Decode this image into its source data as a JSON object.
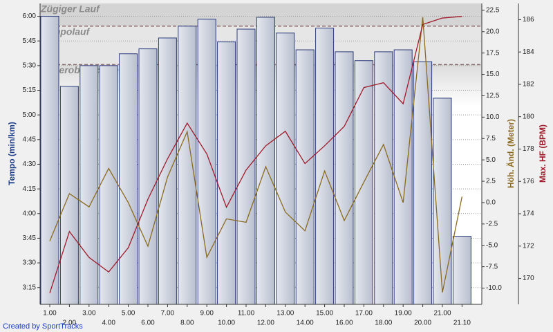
{
  "chart_data": {
    "type": "bar",
    "credit": "Created by SportTracks",
    "categories": [
      "1.00",
      "2.00",
      "3.00",
      "4.00",
      "5.00",
      "6.00",
      "7.00",
      "8.00",
      "9.00",
      "10.00",
      "11.00",
      "12.00",
      "13.00",
      "14.00",
      "15.00",
      "16.00",
      "17.00",
      "18.00",
      "19.00",
      "20.00",
      "21.00",
      "21.10"
    ],
    "ylabel": "Tempo (min/km)",
    "y2label": "Höh. Änd. (Meter)",
    "y3label": "Max. HF (BPM)",
    "ylim": [
      3.08,
      6.13
    ],
    "yticks": [
      {
        "value": 6,
        "label": "6:00"
      },
      {
        "value": 5.75,
        "label": "5:45"
      },
      {
        "value": 5.5,
        "label": "5:30"
      },
      {
        "value": 5.25,
        "label": "5:15"
      },
      {
        "value": 5,
        "label": "5:00"
      },
      {
        "value": 4.75,
        "label": "4:45"
      },
      {
        "value": 4.5,
        "label": "4:30"
      },
      {
        "value": 4.25,
        "label": "4:15"
      },
      {
        "value": 4,
        "label": "4:00"
      },
      {
        "value": 3.75,
        "label": "3:45"
      },
      {
        "value": 3.5,
        "label": "3:30"
      },
      {
        "value": 3.25,
        "label": "3:15"
      }
    ],
    "y2lim": [
      -11.9,
      23.3
    ],
    "y2ticks": [
      22.5,
      {
        "value": 20,
        "label": "20.0"
      },
      17.5,
      {
        "value": 15,
        "label": "15.0"
      },
      12.5,
      {
        "value": 10,
        "label": "10.0"
      },
      7.5,
      {
        "value": 5,
        "label": "5.0"
      },
      2.5,
      {
        "value": 0,
        "label": "0.0"
      },
      -2.5,
      {
        "value": -5,
        "label": "-5.0"
      },
      -7.5,
      {
        "value": -10,
        "label": "-10.0"
      }
    ],
    "y3lim": [
      168.4,
      187.0
    ],
    "y3ticks": [
      186,
      184,
      182,
      180,
      178,
      176,
      174,
      172,
      170
    ],
    "grid": true,
    "zones": [
      {
        "label": "Zügiger Lauf",
        "from": 5.9
      },
      {
        "label": "Tempolauf",
        "from": 5.51,
        "to": 5.9
      },
      {
        "label": "Aenerobe Schwelle",
        "to": 5.51
      }
    ],
    "series": [
      {
        "name": "Tempo",
        "type": "bar",
        "color": "#c7ccd9",
        "values": [
          6.0,
          5.29,
          5.5,
          5.5,
          5.62,
          5.67,
          5.78,
          5.9,
          5.97,
          5.74,
          5.87,
          5.99,
          5.83,
          5.66,
          5.88,
          5.64,
          5.55,
          5.64,
          5.66,
          5.54,
          5.17,
          3.77
        ]
      },
      {
        "name": "Höh. Änd.",
        "type": "line",
        "axis": "y2",
        "color": "#8b6a1e",
        "values": [
          -4.5,
          1.05,
          -0.5,
          4.0,
          0,
          -5.1,
          3.0,
          8.3,
          -6.4,
          -1.9,
          -2.3,
          4.2,
          -1.1,
          -3.3,
          3.7,
          -2.1,
          2.4,
          6.8,
          0,
          21.7,
          -10.5,
          0.7
        ]
      },
      {
        "name": "Max. HF",
        "type": "line",
        "axis": "y3",
        "color": "#a01a2a",
        "values": [
          169.1,
          172.9,
          171.3,
          170.4,
          171.9,
          174.9,
          177.4,
          179.6,
          177.7,
          174.4,
          176.7,
          178.2,
          179.1,
          177.1,
          178.2,
          179.4,
          181.8,
          182.1,
          180.8,
          185.7,
          186.1,
          186.2
        ]
      }
    ]
  }
}
